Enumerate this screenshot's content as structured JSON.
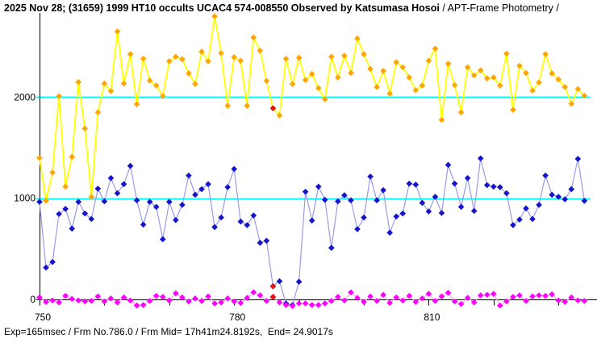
{
  "title": {
    "main": "2025 Nov 28; (31659) 1999 HT10 occults UCAC4 574-008550 Observed by Katsumasa Hosoi",
    "suffix": " / APT-Frame Photometry /"
  },
  "status_bar": {
    "text": "Exp=165msec / Frm No.786.0 / Frm Mid= 17h41m24.8192s,  End= 24.9017s"
  },
  "chart_data": {
    "type": "line",
    "title": "2025 Nov 28; (31659) 1999 HT10 occults UCAC4 574-008550 Observed by Katsumasa Hosoi / APT-Frame Photometry /",
    "xlabel": "",
    "ylabel": "",
    "x_axis": {
      "min": 750,
      "max": 836,
      "tick_step": 10,
      "tick_min": 750,
      "tick_max": 830,
      "labels": [
        {
          "value": 750,
          "text": "750"
        },
        {
          "value": 780,
          "text": "780"
        },
        {
          "value": 810,
          "text": "810"
        }
      ]
    },
    "y_axis": {
      "min": -100,
      "max": 2830,
      "labels": [
        {
          "value": 2000,
          "text": "2000"
        },
        {
          "value": 1000,
          "text": "1000"
        },
        {
          "value": 0,
          "text": "0"
        }
      ]
    },
    "reference_lines": [
      {
        "value": 2000,
        "color": "#00ffff"
      },
      {
        "value": 1000,
        "color": "#00ffff"
      }
    ],
    "highlight": {
      "frame": 786,
      "color": "#e81010"
    },
    "frame_start": 750,
    "series": [
      {
        "id": "yellow-series",
        "line_color": "#ffff00",
        "marker_color": "#ffa500",
        "values": [
          1400,
          975,
          1255,
          2010,
          1115,
          1410,
          2150,
          1690,
          1015,
          1850,
          2135,
          2060,
          2650,
          2135,
          2425,
          1930,
          2380,
          2165,
          2115,
          2010,
          2355,
          2400,
          2375,
          2235,
          2130,
          2450,
          2355,
          2800,
          2435,
          1915,
          2395,
          2360,
          1915,
          2590,
          2460,
          2160,
          1890,
          1820,
          2380,
          2130,
          2390,
          2170,
          2230,
          2090,
          1980,
          2400,
          2195,
          2410,
          2240,
          2580,
          2425,
          2280,
          2100,
          2260,
          2035,
          2345,
          2295,
          2195,
          2070,
          2115,
          2360,
          2480,
          1775,
          2330,
          2120,
          1850,
          2295,
          2215,
          2265,
          2185,
          2195,
          2115,
          2430,
          1875,
          2310,
          2240,
          2065,
          2145,
          2425,
          2235,
          2175,
          2100,
          1935,
          2080,
          2015
        ]
      },
      {
        "id": "blue-series",
        "line_color": "#9a9ae8",
        "marker_color": "#1414cc",
        "values": [
          965,
          315,
          370,
          845,
          895,
          700,
          965,
          850,
          795,
          1095,
          970,
          1200,
          1050,
          1140,
          1320,
          980,
          740,
          965,
          915,
          595,
          965,
          785,
          935,
          1225,
          1035,
          1090,
          1140,
          715,
          810,
          1110,
          1290,
          770,
          735,
          830,
          560,
          580,
          130,
          180,
          -40,
          -55,
          175,
          1065,
          780,
          1115,
          985,
          510,
          970,
          1030,
          980,
          695,
          810,
          1215,
          980,
          1080,
          660,
          820,
          850,
          1145,
          1135,
          955,
          870,
          1015,
          855,
          1330,
          1145,
          915,
          1200,
          875,
          1395,
          1130,
          1115,
          1110,
          1050,
          735,
          790,
          900,
          795,
          935,
          1225,
          1035,
          1015,
          990,
          1090,
          1390,
          975
        ]
      },
      {
        "id": "magenta-series",
        "line_color": "#ffa0f0",
        "marker_color": "#ff00ff",
        "values": [
          20,
          -25,
          -10,
          -30,
          35,
          5,
          -10,
          -20,
          -15,
          30,
          -20,
          10,
          -30,
          20,
          -10,
          -60,
          -55,
          -15,
          35,
          25,
          -10,
          60,
          20,
          -20,
          10,
          -15,
          30,
          -40,
          -30,
          10,
          -20,
          -35,
          15,
          70,
          40,
          -15,
          25,
          -30,
          -55,
          -65,
          -40,
          -40,
          -55,
          -55,
          -40,
          -15,
          25,
          -10,
          70,
          15,
          -25,
          30,
          -15,
          45,
          -35,
          20,
          -10,
          35,
          -25,
          10,
          55,
          -15,
          30,
          65,
          -20,
          -45,
          15,
          -30,
          40,
          45,
          55,
          -60,
          -20,
          25,
          40,
          -15,
          30,
          40,
          35,
          50,
          -10,
          -25,
          20,
          -10,
          -15
        ]
      }
    ]
  }
}
